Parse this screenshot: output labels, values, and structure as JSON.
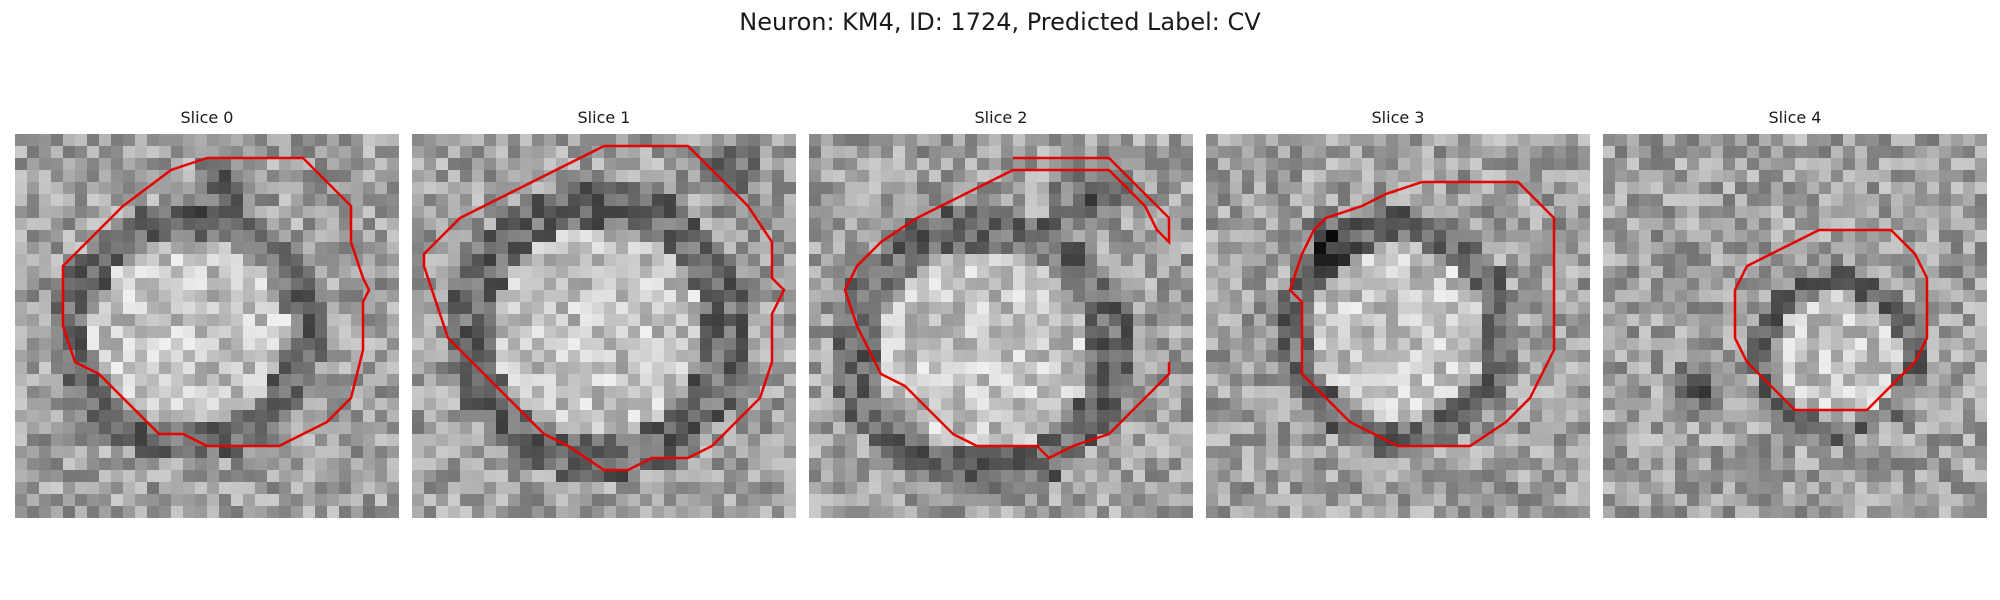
{
  "figure": {
    "title": "Neuron: KM4, ID: 1724, Predicted Label: CV"
  },
  "contour_color": "#e60000",
  "panels": [
    {
      "title": "Slice 0"
    },
    {
      "title": "Slice 1"
    },
    {
      "title": "Slice 2"
    },
    {
      "title": "Slice 3"
    },
    {
      "title": "Slice 4"
    }
  ]
}
